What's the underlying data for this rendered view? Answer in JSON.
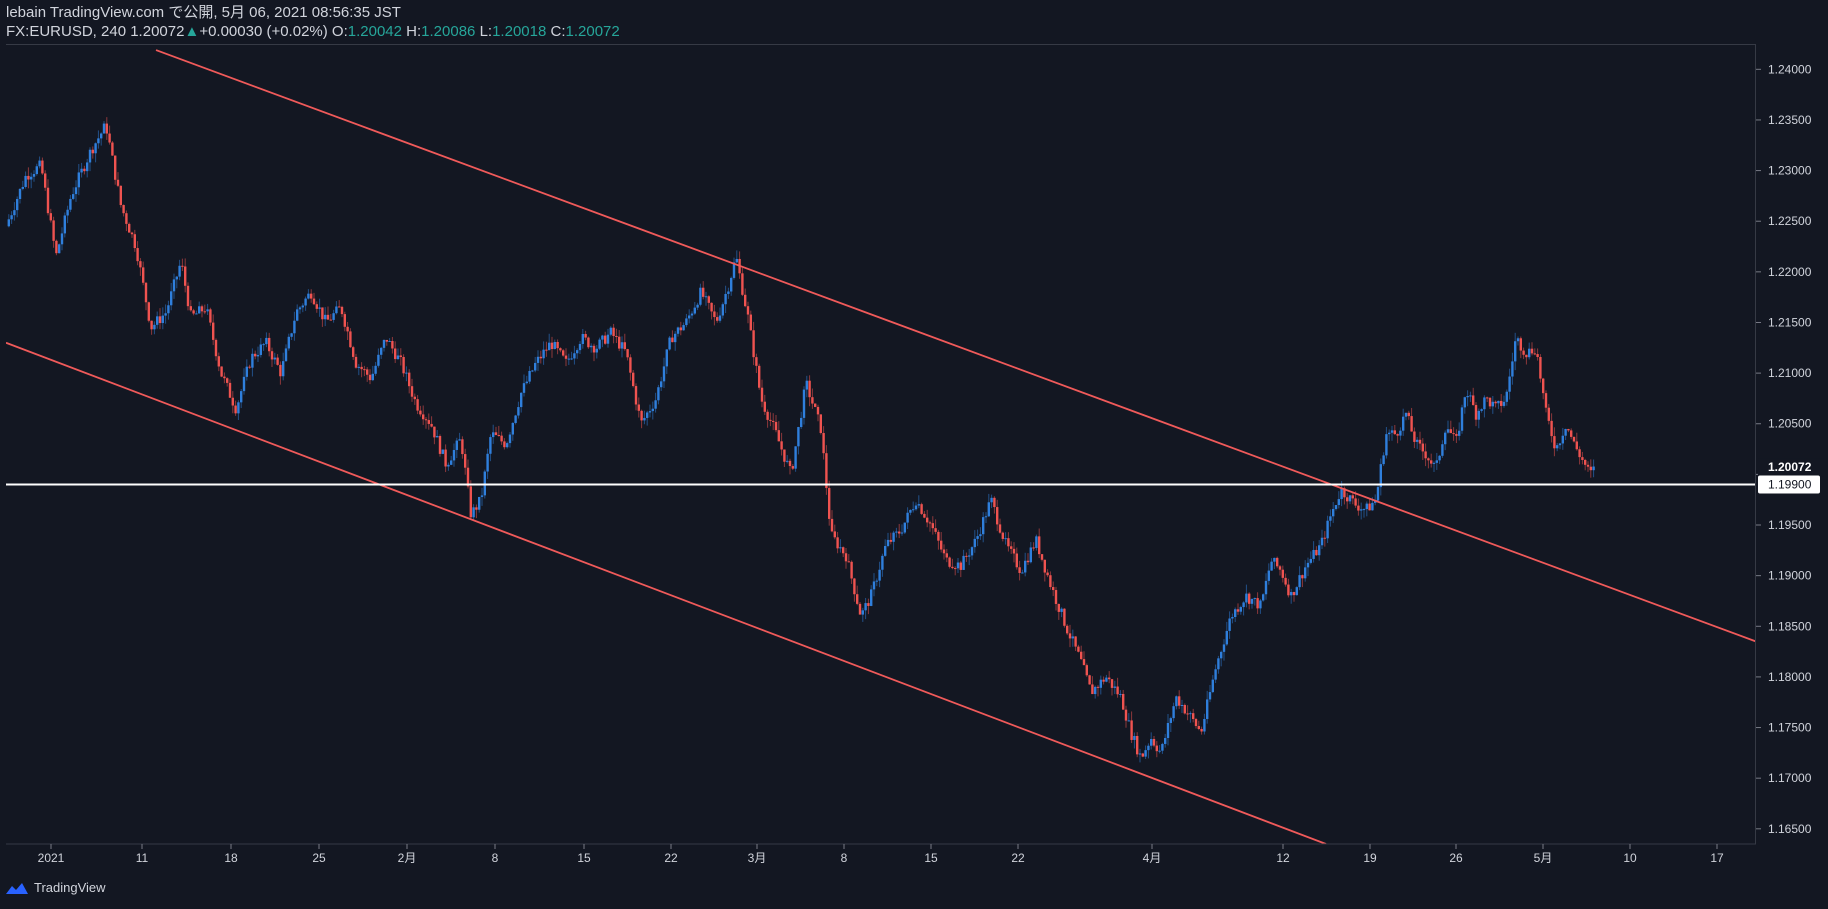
{
  "header": {
    "line1": "lebain TradingView.com で公開, 5月 06, 2021 08:56:35 JST",
    "symbol": "FX:EURUSD, 240",
    "last": "1.20072",
    "change": "+0.00030 (+0.02%)",
    "o_label": "O:",
    "o_value": "1.20042",
    "h_label": "H:",
    "h_value": "1.20086",
    "l_label": "L:",
    "l_value": "1.20018",
    "c_label": "C:",
    "c_value": "1.20072"
  },
  "footer": {
    "brand": "TradingView"
  },
  "colors": {
    "background": "#131722",
    "up": "#2f7fdc",
    "down": "#ef5350",
    "trendline": "#f05a5a",
    "hline": "#ffffff",
    "text": "#d1d4dc",
    "accent": "#26a69a"
  },
  "chart_data": {
    "type": "candlestick",
    "ylim": [
      1.1635,
      1.2425
    ],
    "yticks": [
      "1.24000",
      "1.23500",
      "1.23000",
      "1.22500",
      "1.22000",
      "1.21500",
      "1.21000",
      "1.20500",
      "1.20000",
      "1.19500",
      "1.19000",
      "1.18500",
      "1.18000",
      "1.17500",
      "1.17000",
      "1.16500"
    ],
    "ytick_values": [
      1.24,
      1.235,
      1.23,
      1.225,
      1.22,
      1.215,
      1.21,
      1.205,
      1.2,
      1.195,
      1.19,
      1.185,
      1.18,
      1.175,
      1.17,
      1.165
    ],
    "xrange": [
      0,
      1750
    ],
    "xticks": [
      {
        "label": "2021",
        "x": 45
      },
      {
        "label": "11",
        "x": 136
      },
      {
        "label": "18",
        "x": 225
      },
      {
        "label": "25",
        "x": 313
      },
      {
        "label": "2月",
        "x": 401
      },
      {
        "label": "8",
        "x": 489
      },
      {
        "label": "15",
        "x": 578
      },
      {
        "label": "22",
        "x": 665
      },
      {
        "label": "3月",
        "x": 751
      },
      {
        "label": "8",
        "x": 838
      },
      {
        "label": "15",
        "x": 925
      },
      {
        "label": "22",
        "x": 1012
      },
      {
        "label": "4月",
        "x": 1146
      },
      {
        "label": "12",
        "x": 1277
      },
      {
        "label": "19",
        "x": 1364
      },
      {
        "label": "26",
        "x": 1450
      },
      {
        "label": "5月",
        "x": 1537
      },
      {
        "label": "10",
        "x": 1624
      },
      {
        "label": "17",
        "x": 1711
      }
    ],
    "close_path": [
      [
        0,
        1.2245
      ],
      [
        20,
        1.2295
      ],
      [
        35,
        1.2305
      ],
      [
        50,
        1.2215
      ],
      [
        65,
        1.2275
      ],
      [
        85,
        1.232
      ],
      [
        100,
        1.2345
      ],
      [
        115,
        1.2265
      ],
      [
        130,
        1.2225
      ],
      [
        145,
        1.2145
      ],
      [
        160,
        1.216
      ],
      [
        175,
        1.221
      ],
      [
        185,
        1.2155
      ],
      [
        200,
        1.2165
      ],
      [
        215,
        1.21
      ],
      [
        230,
        1.2065
      ],
      [
        245,
        1.2115
      ],
      [
        260,
        1.213
      ],
      [
        275,
        1.21
      ],
      [
        290,
        1.216
      ],
      [
        305,
        1.218
      ],
      [
        320,
        1.215
      ],
      [
        335,
        1.2165
      ],
      [
        350,
        1.211
      ],
      [
        365,
        1.2095
      ],
      [
        380,
        1.2135
      ],
      [
        395,
        1.211
      ],
      [
        410,
        1.207
      ],
      [
        425,
        1.205
      ],
      [
        440,
        1.201
      ],
      [
        455,
        1.2035
      ],
      [
        465,
        1.196
      ],
      [
        475,
        1.1975
      ],
      [
        485,
        1.204
      ],
      [
        500,
        1.203
      ],
      [
        515,
        1.208
      ],
      [
        530,
        1.211
      ],
      [
        545,
        1.213
      ],
      [
        560,
        1.211
      ],
      [
        575,
        1.2135
      ],
      [
        590,
        1.2125
      ],
      [
        605,
        1.214
      ],
      [
        620,
        1.212
      ],
      [
        635,
        1.205
      ],
      [
        650,
        1.2075
      ],
      [
        665,
        1.2135
      ],
      [
        680,
        1.215
      ],
      [
        695,
        1.218
      ],
      [
        710,
        1.215
      ],
      [
        722,
        1.2185
      ],
      [
        730,
        1.2215
      ],
      [
        742,
        1.2155
      ],
      [
        755,
        1.2075
      ],
      [
        770,
        1.204
      ],
      [
        785,
        1.2
      ],
      [
        800,
        1.209
      ],
      [
        815,
        1.2045
      ],
      [
        825,
        1.194
      ],
      [
        840,
        1.192
      ],
      [
        855,
        1.186
      ],
      [
        865,
        1.188
      ],
      [
        880,
        1.193
      ],
      [
        895,
        1.1945
      ],
      [
        910,
        1.1975
      ],
      [
        925,
        1.195
      ],
      [
        940,
        1.1915
      ],
      [
        955,
        1.191
      ],
      [
        970,
        1.1935
      ],
      [
        985,
        1.1975
      ],
      [
        1000,
        1.193
      ],
      [
        1015,
        1.1905
      ],
      [
        1030,
        1.1935
      ],
      [
        1045,
        1.189
      ],
      [
        1060,
        1.185
      ],
      [
        1075,
        1.1815
      ],
      [
        1085,
        1.1785
      ],
      [
        1100,
        1.18
      ],
      [
        1115,
        1.178
      ],
      [
        1125,
        1.1745
      ],
      [
        1135,
        1.172
      ],
      [
        1145,
        1.174
      ],
      [
        1155,
        1.1725
      ],
      [
        1170,
        1.178
      ],
      [
        1185,
        1.176
      ],
      [
        1195,
        1.1745
      ],
      [
        1210,
        1.181
      ],
      [
        1225,
        1.186
      ],
      [
        1240,
        1.188
      ],
      [
        1255,
        1.187
      ],
      [
        1265,
        1.1915
      ],
      [
        1275,
        1.1905
      ],
      [
        1285,
        1.188
      ],
      [
        1300,
        1.191
      ],
      [
        1315,
        1.193
      ],
      [
        1325,
        1.196
      ],
      [
        1335,
        1.1985
      ],
      [
        1350,
        1.197
      ],
      [
        1360,
        1.1965
      ],
      [
        1370,
        1.1975
      ],
      [
        1380,
        1.204
      ],
      [
        1390,
        1.204
      ],
      [
        1400,
        1.206
      ],
      [
        1410,
        1.203
      ],
      [
        1420,
        1.202
      ],
      [
        1430,
        1.2005
      ],
      [
        1440,
        1.205
      ],
      [
        1450,
        1.203
      ],
      [
        1460,
        1.2085
      ],
      [
        1470,
        1.206
      ],
      [
        1480,
        1.2075
      ],
      [
        1490,
        1.2065
      ],
      [
        1500,
        1.2075
      ],
      [
        1510,
        1.2135
      ],
      [
        1520,
        1.212
      ],
      [
        1530,
        1.2125
      ],
      [
        1540,
        1.206
      ],
      [
        1550,
        1.2025
      ],
      [
        1560,
        1.205
      ],
      [
        1568,
        1.203
      ],
      [
        1576,
        1.2015
      ],
      [
        1584,
        1.2
      ],
      [
        1590,
        1.2007
      ]
    ],
    "hline": {
      "value": 1.199,
      "label": "1.19900"
    },
    "last_price": {
      "value": 1.20072,
      "label": "1.20072"
    },
    "trendlines": [
      {
        "x1": 150,
        "y1": 1.2419,
        "x2": 1750,
        "y2": 1.1835
      },
      {
        "x1": 0,
        "y1": 1.213,
        "x2": 1320,
        "y2": 1.1635
      }
    ]
  }
}
